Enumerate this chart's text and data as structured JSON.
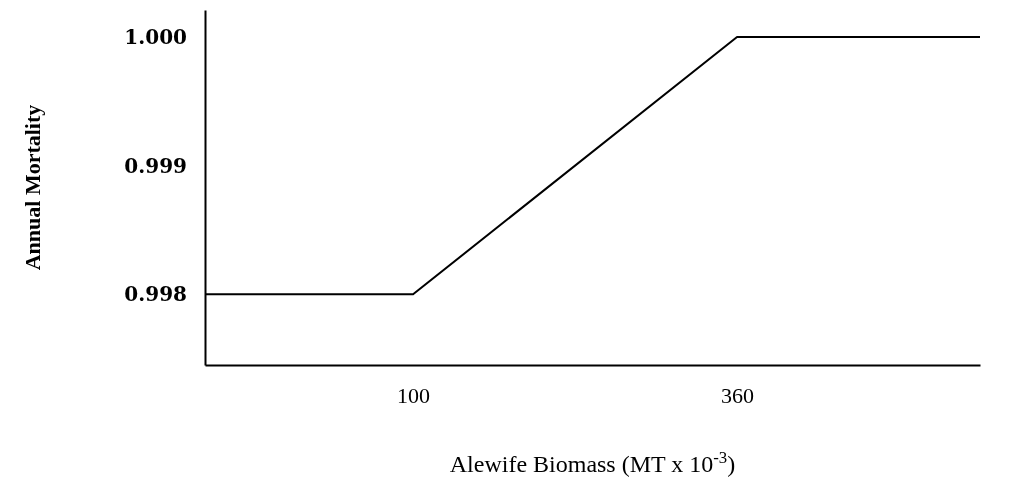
{
  "chart_data": {
    "type": "line",
    "xlabel": "Alewife Biomass (MT x 10$^{-3}$)",
    "ylabel": "Annual Mortality",
    "x": [
      -67,
      100,
      360,
      555
    ],
    "series": [
      {
        "color": "#000000",
        "values": [
          0.998,
          0.998,
          1.0,
          1.0
        ]
      }
    ],
    "xlim": [
      -67,
      555
    ],
    "xticks": [
      100,
      360
    ],
    "ylim": [
      0.99745,
      1.00021
    ],
    "yticks": [
      {
        "value": 0.998,
        "label": "0.998"
      },
      {
        "value": 0.999,
        "label": "0.999"
      },
      {
        "value": 1.0,
        "label": "1.000"
      }
    ],
    "marker": "none",
    "line_style": "solid"
  }
}
